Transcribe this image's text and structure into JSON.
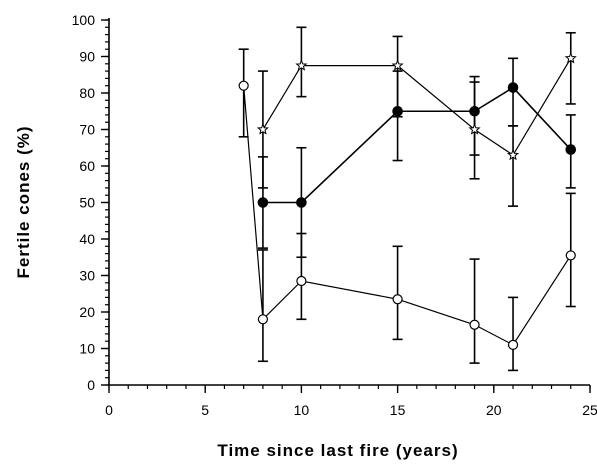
{
  "chart_data": {
    "type": "scatter",
    "title": "",
    "xlabel": "Time since last fire (years)",
    "ylabel": "Fertile cones (%)",
    "xlim": [
      0,
      25
    ],
    "ylim": [
      0,
      100
    ],
    "x_ticks": [
      "0",
      "5",
      "10",
      "15",
      "20",
      "25"
    ],
    "y_ticks": [
      "0",
      "10",
      "20",
      "30",
      "40",
      "50",
      "60",
      "70",
      "80",
      "90",
      "100"
    ],
    "x_minor_step": 1,
    "y_minor_step": 2,
    "grid": false,
    "legend": "none",
    "connected_lines": true,
    "error_bars": true,
    "series": [
      {
        "marker": "open-circle",
        "points": [
          {
            "x": 7,
            "y": 82,
            "yerr": [
              68,
              92
            ]
          },
          {
            "x": 8,
            "y": 18,
            "yerr": [
              6.5,
              37
            ]
          },
          {
            "x": 10,
            "y": 28.5,
            "yerr": [
              18,
              41.5
            ]
          },
          {
            "x": 15,
            "y": 23.5,
            "yerr": [
              12.5,
              38
            ]
          },
          {
            "x": 19,
            "y": 16.5,
            "yerr": [
              6,
              34.5
            ]
          },
          {
            "x": 21,
            "y": 11,
            "yerr": [
              4,
              24
            ]
          },
          {
            "x": 24,
            "y": 35.5,
            "yerr": [
              21.5,
              52.5
            ]
          }
        ]
      },
      {
        "marker": "filled-circle",
        "points": [
          {
            "x": 8,
            "y": 50,
            "yerr": [
              37.5,
              62.5
            ]
          },
          {
            "x": 10,
            "y": 50,
            "yerr": [
              35,
              65
            ]
          },
          {
            "x": 15,
            "y": 75,
            "yerr": [
              61.5,
              86
            ]
          },
          {
            "x": 19,
            "y": 75,
            "yerr": [
              63,
              84.5
            ]
          },
          {
            "x": 21,
            "y": 81.5,
            "yerr": [
              71,
              89.5
            ]
          },
          {
            "x": 24,
            "y": 64.5,
            "yerr": [
              54,
              74
            ]
          }
        ]
      },
      {
        "marker": "star",
        "points": [
          {
            "x": 8,
            "y": 70,
            "yerr": [
              54,
              86
            ]
          },
          {
            "x": 10,
            "y": 87.5,
            "yerr": [
              79,
              98
            ]
          },
          {
            "x": 15,
            "y": 87.5,
            "yerr": [
              73.5,
              95.5
            ]
          },
          {
            "x": 19,
            "y": 70,
            "yerr": [
              56.5,
              83
            ]
          },
          {
            "x": 21,
            "y": 63,
            "yerr": [
              49,
              71
            ]
          },
          {
            "x": 24,
            "y": 89.5,
            "yerr": [
              77,
              96.5
            ]
          }
        ]
      }
    ]
  }
}
